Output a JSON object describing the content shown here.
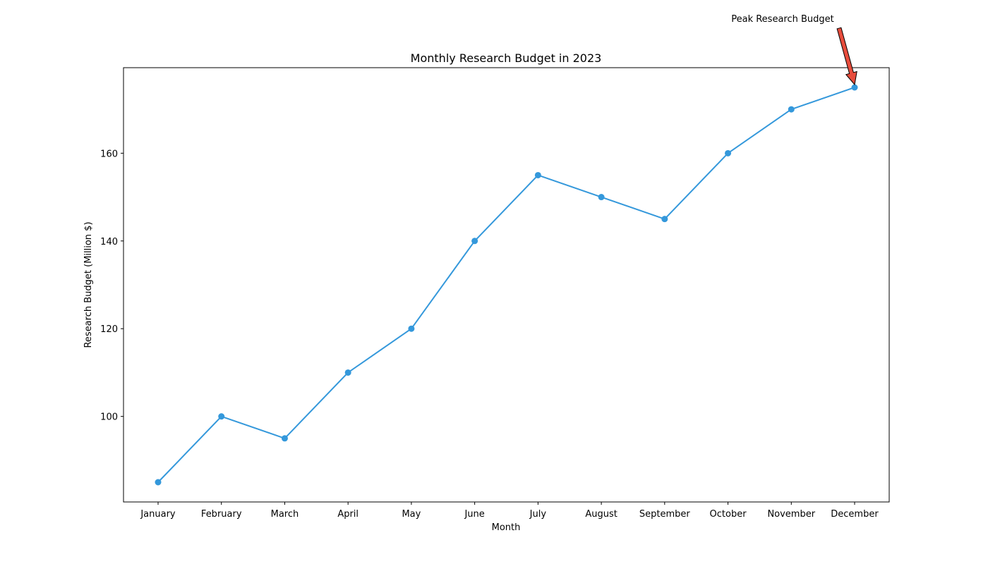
{
  "chart_data": {
    "type": "line",
    "title": "Monthly Research Budget in 2023",
    "xlabel": "Month",
    "ylabel": "Research Budget (Million $)",
    "categories": [
      "January",
      "February",
      "March",
      "April",
      "May",
      "June",
      "July",
      "August",
      "September",
      "October",
      "November",
      "December"
    ],
    "series": [
      {
        "values": [
          85,
          100,
          95,
          110,
          120,
          140,
          155,
          150,
          145,
          160,
          170,
          175
        ],
        "color": "#3498db",
        "marker": "circle"
      }
    ],
    "ylim": [
      80.5,
      179.5
    ],
    "yticks": [
      100,
      120,
      140,
      160
    ],
    "grid": false,
    "annotation": {
      "text": "Peak Research Budget",
      "target_category": "December",
      "target_value": 175,
      "arrow_color": "#e74c3c"
    }
  }
}
